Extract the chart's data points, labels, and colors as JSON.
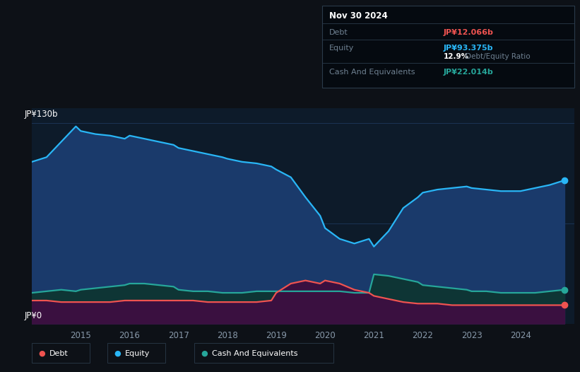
{
  "bg_color": "#0d1117",
  "plot_bg_color": "#0d1b2a",
  "equity_line_color": "#29b6f6",
  "debt_line_color": "#ef5350",
  "cash_line_color": "#26a69a",
  "equity_fill_color": "#1a3a6b",
  "cash_fill_color": "#0e3535",
  "debt_fill_color": "#3a1040",
  "grid_color": "#1e3a5f",
  "label_color": "#6e8090",
  "tick_color": "#8899aa",
  "tooltip_bg": "#050a10",
  "tooltip_border": "#2a3a4a",
  "ylabel_top": "JP¥130b",
  "ylabel_bottom": "JP¥0",
  "x_labels": [
    "2015",
    "2016",
    "2017",
    "2018",
    "2019",
    "2020",
    "2021",
    "2022",
    "2023",
    "2024"
  ],
  "tooltip": {
    "date": "Nov 30 2024",
    "debt_label": "Debt",
    "debt_value": "JP¥12.066b",
    "equity_label": "Equity",
    "equity_value": "JP¥93.375b",
    "ratio_value": "12.9%",
    "ratio_label": "Debt/Equity Ratio",
    "cash_label": "Cash And Equivalents",
    "cash_value": "JP¥22.014b"
  },
  "legend": [
    {
      "label": "Debt",
      "color": "#ef5350"
    },
    {
      "label": "Equity",
      "color": "#29b6f6"
    },
    {
      "label": "Cash And Equivalents",
      "color": "#26a69a"
    }
  ],
  "years": [
    2014.0,
    2014.3,
    2014.6,
    2014.9,
    2015.0,
    2015.3,
    2015.6,
    2015.9,
    2016.0,
    2016.3,
    2016.6,
    2016.9,
    2017.0,
    2017.3,
    2017.6,
    2017.9,
    2018.0,
    2018.3,
    2018.6,
    2018.9,
    2019.0,
    2019.3,
    2019.6,
    2019.9,
    2020.0,
    2020.3,
    2020.6,
    2020.9,
    2021.0,
    2021.3,
    2021.6,
    2021.9,
    2022.0,
    2022.3,
    2022.6,
    2022.9,
    2023.0,
    2023.3,
    2023.6,
    2023.9,
    2024.0,
    2024.3,
    2024.6,
    2024.9
  ],
  "equity": [
    105,
    108,
    118,
    128,
    125,
    123,
    122,
    120,
    122,
    120,
    118,
    116,
    114,
    112,
    110,
    108,
    107,
    105,
    104,
    102,
    100,
    95,
    82,
    70,
    62,
    55,
    52,
    55,
    50,
    60,
    75,
    82,
    85,
    87,
    88,
    89,
    88,
    87,
    86,
    86,
    86,
    88,
    90,
    93
  ],
  "debt": [
    15,
    15,
    14,
    14,
    14,
    14,
    14,
    15,
    15,
    15,
    15,
    15,
    15,
    15,
    14,
    14,
    14,
    14,
    14,
    15,
    20,
    26,
    28,
    26,
    28,
    26,
    22,
    20,
    18,
    16,
    14,
    13,
    13,
    13,
    12,
    12,
    12,
    12,
    12,
    12,
    12,
    12,
    12,
    12
  ],
  "cash": [
    20,
    21,
    22,
    21,
    22,
    23,
    24,
    25,
    26,
    26,
    25,
    24,
    22,
    21,
    21,
    20,
    20,
    20,
    21,
    21,
    21,
    21,
    21,
    21,
    21,
    21,
    20,
    20,
    32,
    31,
    29,
    27,
    25,
    24,
    23,
    22,
    21,
    21,
    20,
    20,
    20,
    20,
    21,
    22
  ]
}
